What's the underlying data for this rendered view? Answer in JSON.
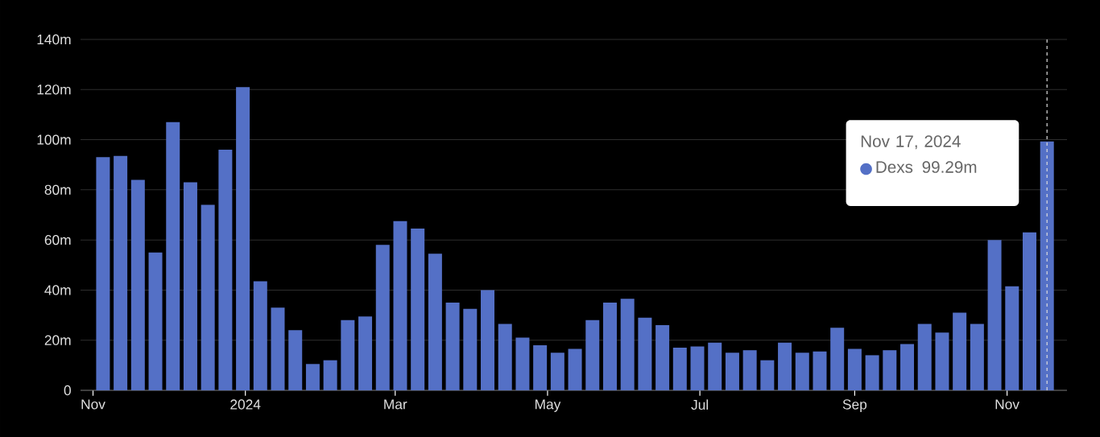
{
  "chart_data": {
    "type": "bar",
    "x": [
      "2023-11-05",
      "2023-11-12",
      "2023-11-19",
      "2023-11-26",
      "2023-12-03",
      "2023-12-10",
      "2023-12-17",
      "2023-12-24",
      "2023-12-31",
      "2024-01-07",
      "2024-01-14",
      "2024-01-21",
      "2024-01-28",
      "2024-02-04",
      "2024-02-11",
      "2024-02-18",
      "2024-02-25",
      "2024-03-03",
      "2024-03-10",
      "2024-03-17",
      "2024-03-24",
      "2024-03-31",
      "2024-04-07",
      "2024-04-14",
      "2024-04-21",
      "2024-04-28",
      "2024-05-05",
      "2024-05-12",
      "2024-05-19",
      "2024-05-26",
      "2024-06-02",
      "2024-06-09",
      "2024-06-16",
      "2024-06-23",
      "2024-06-30",
      "2024-07-07",
      "2024-07-14",
      "2024-07-21",
      "2024-07-28",
      "2024-08-04",
      "2024-08-11",
      "2024-08-18",
      "2024-08-25",
      "2024-09-01",
      "2024-09-08",
      "2024-09-15",
      "2024-09-22",
      "2024-09-29",
      "2024-10-06",
      "2024-10-13",
      "2024-10-20",
      "2024-10-27",
      "2024-11-03",
      "2024-11-10",
      "2024-11-17"
    ],
    "series": [
      {
        "name": "Dexs",
        "color": "#5470c6",
        "values": [
          93,
          93.5,
          84,
          55,
          107,
          83,
          74,
          96,
          121,
          43.5,
          33,
          24,
          10.5,
          12,
          28,
          29.5,
          58,
          67.5,
          64.5,
          54.5,
          35,
          32.5,
          40,
          26.5,
          21,
          18,
          15,
          16.5,
          28,
          35,
          36.5,
          29,
          26,
          17,
          17.5,
          19,
          15,
          16,
          12,
          19,
          15,
          15.5,
          25,
          16.5,
          14,
          16,
          18.5,
          26.5,
          23,
          31,
          26.5,
          60,
          41.5,
          63,
          99.29
        ],
        "value_labels": [
          null,
          null,
          null,
          null,
          null,
          null,
          null,
          null,
          null,
          null,
          null,
          null,
          null,
          null,
          null,
          null,
          null,
          null,
          null,
          null,
          null,
          null,
          null,
          null,
          null,
          null,
          null,
          null,
          null,
          null,
          null,
          null,
          null,
          null,
          null,
          null,
          null,
          null,
          null,
          null,
          null,
          null,
          null,
          null,
          null,
          null,
          null,
          null,
          null,
          null,
          null,
          null,
          null,
          null,
          null
        ]
      }
    ],
    "xlim": [
      "2023-10-27",
      "2024-11-25"
    ],
    "xticks": [
      {
        "value": "2023-11-01",
        "label": "Nov"
      },
      {
        "value": "2024-01-01",
        "label": "2024"
      },
      {
        "value": "2024-03-01",
        "label": "Mar"
      },
      {
        "value": "2024-05-01",
        "label": "May"
      },
      {
        "value": "2024-07-01",
        "label": "Jul"
      },
      {
        "value": "2024-09-01",
        "label": "Sep"
      },
      {
        "value": "2024-11-01",
        "label": "Nov"
      }
    ],
    "ylim": [
      0,
      140
    ],
    "yticks": [
      0,
      {
        "value": 20,
        "label": "20m"
      },
      {
        "value": 40,
        "label": "40m"
      },
      {
        "value": 60,
        "label": "60m"
      },
      {
        "value": 80,
        "label": "80m"
      },
      {
        "value": 100,
        "label": "100m"
      },
      {
        "value": 120,
        "label": "120m"
      },
      {
        "value": 140,
        "label": "140m"
      }
    ],
    "grid": "y",
    "legend": "top right",
    "ref_lines": [
      {
        "axis": "x",
        "value": "2024-11-17",
        "color": "#dddddd",
        "line_style": "dashed"
      }
    ],
    "annotations": [
      "Nov 17, 2024",
      "99.29m"
    ]
  }
}
